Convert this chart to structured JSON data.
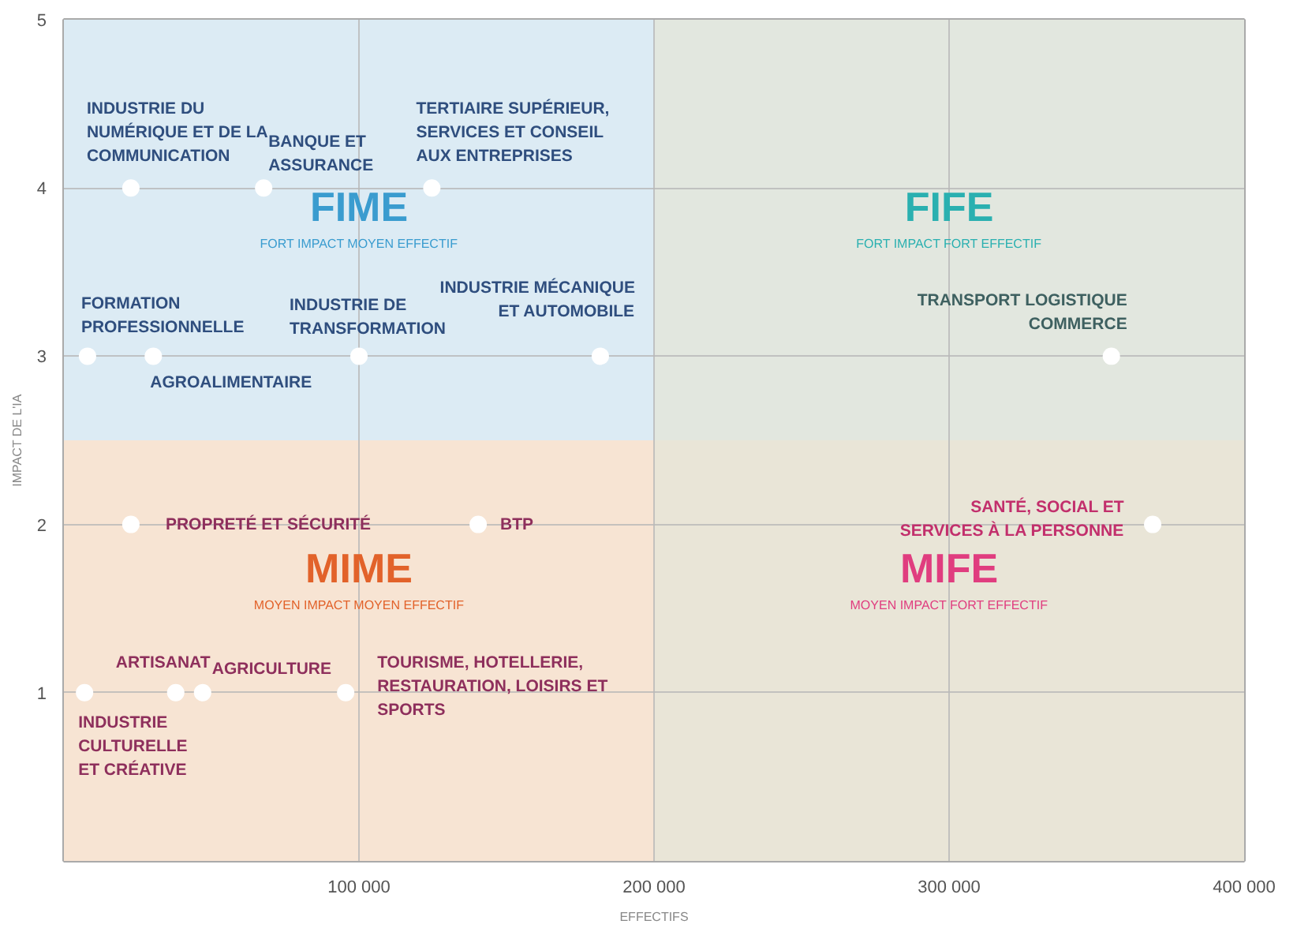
{
  "chart_data": {
    "type": "scatter",
    "xlabel": "EFFECTIFS",
    "ylabel": "IMPACT DE L'IA",
    "x": [
      22700,
      67700,
      124700,
      8000,
      30300,
      100000,
      181800,
      355000,
      22700,
      140400,
      369000,
      7000,
      37900,
      47000,
      95500
    ],
    "series": [
      {
        "color": "#ffffff",
        "values": [
          4,
          4,
          4,
          3,
          3,
          3,
          3,
          3,
          2,
          2,
          2,
          1,
          1,
          1,
          1
        ]
      }
    ],
    "marker": "circle",
    "xlim": [
      0,
      400000
    ],
    "ylim": [
      0,
      5
    ],
    "xticks": [
      {
        "value": 100000,
        "label": "100 000"
      },
      {
        "value": 200000,
        "label": "200 000"
      },
      {
        "value": 300000,
        "label": "300 000"
      },
      {
        "value": 400000,
        "label": "400 000"
      }
    ],
    "yticks": [
      1,
      2,
      3,
      4,
      5
    ],
    "grid": true,
    "bands": [
      {
        "axis": "y",
        "from": 2.5,
        "to": 5,
        "color": "#dcebf4"
      },
      {
        "axis": "y",
        "from": 0,
        "to": 2.5,
        "color": "#f7e4d3"
      },
      {
        "axis": "x",
        "from": 200000,
        "to": 400000,
        "color": "#e4e6d8"
      }
    ],
    "annotations": [
      {
        "text": "INDUSTRIE DU\nNUMÉRIQUE ET DE LA\nCOMMUNICATION",
        "x": 22700,
        "y": 4
      },
      {
        "text": "BANQUE ET\nASSURANCE",
        "x": 67700,
        "y": 4
      },
      {
        "text": "TERTIAIRE SUPÉRIEUR,\nSERVICES ET CONSEIL\nAUX ENTREPRISES",
        "x": 124700,
        "y": 4
      },
      {
        "text": "FORMATION\nPROFESSIONNELLE",
        "x": 8000,
        "y": 3
      },
      {
        "text": "AGROALIMENTAIRE",
        "x": 30300,
        "y": 3
      },
      {
        "text": "INDUSTRIE DE\nTRANSFORMATION",
        "x": 100000,
        "y": 3
      },
      {
        "text": "INDUSTRIE MÉCANIQUE\nET AUTOMOBILE",
        "x": 181800,
        "y": 3
      },
      {
        "text": "TRANSPORT LOGISTIQUE\nCOMMERCE",
        "x": 355000,
        "y": 3
      },
      {
        "text": "PROPRETÉ ET SÉCURITÉ",
        "x": 22700,
        "y": 2
      },
      {
        "text": "BTP",
        "x": 140400,
        "y": 2
      },
      {
        "text": "SANTÉ, SOCIAL ET\nSERVICES À LA PERSONNE",
        "x": 369000,
        "y": 2
      },
      {
        "text": "INDUSTRIE\nCULTURELLE\nET CRÉATIVE",
        "x": 7000,
        "y": 1
      },
      {
        "text": "ARTISANAT",
        "x": 37900,
        "y": 1
      },
      {
        "text": "AGRICULTURE",
        "x": 47000,
        "y": 1
      },
      {
        "text": "TOURISME, HOTELLERIE,\nRESTAURATION, LOISIRS ET\nSPORTS",
        "x": 95500,
        "y": 1
      },
      "FIME\nFORT IMPACT MOYEN EFFECTIF",
      "FIFE\nFORT IMPACT FORT EFFECTIF",
      "MIME\nMOYEN IMPACT MOYEN EFFECTIF",
      "MIFE\nMOYEN IMPACT FORT EFFECTIF"
    ]
  }
}
